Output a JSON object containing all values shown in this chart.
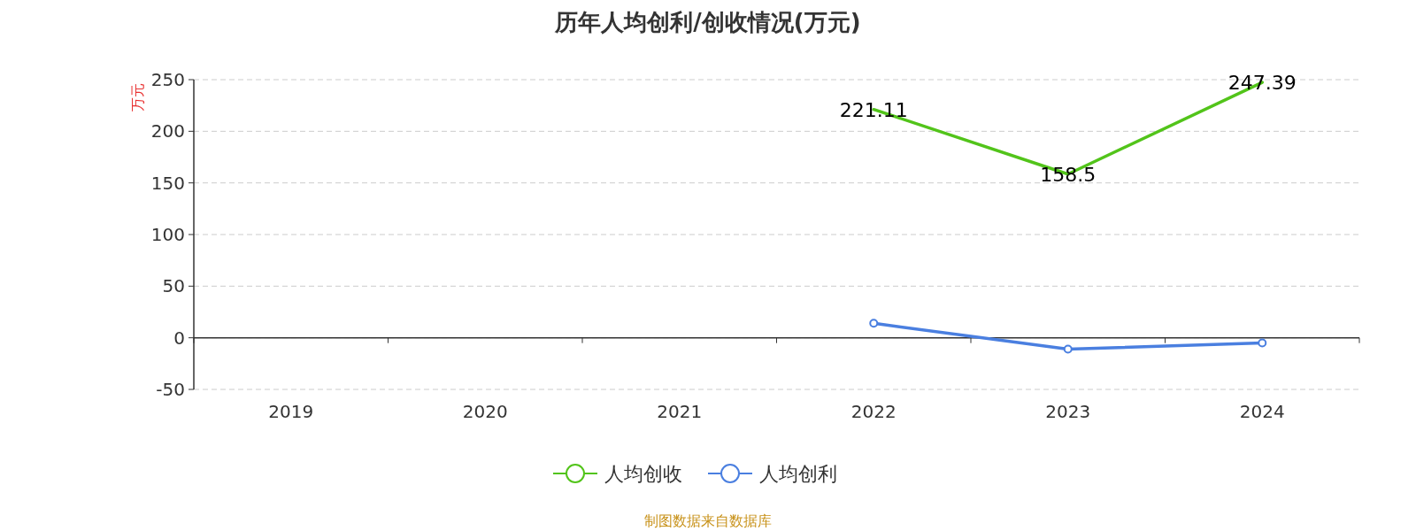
{
  "chart_data": {
    "type": "line",
    "title": "历年人均创利/创收情况(万元)",
    "ylabel": "万元",
    "categories": [
      "2019",
      "2020",
      "2021",
      "2022",
      "2023",
      "2024"
    ],
    "series": [
      {
        "name": "人均创收",
        "color": "#52c41a",
        "marker": "none",
        "values": [
          null,
          null,
          null,
          221.11,
          158.5,
          247.39
        ],
        "value_labels": [
          null,
          null,
          null,
          "221.11",
          "158.5",
          "247.39"
        ]
      },
      {
        "name": "人均创利",
        "color": "#4a7fe0",
        "marker": "circle",
        "values": [
          null,
          null,
          null,
          14,
          -11,
          -5
        ]
      }
    ],
    "ylim": [
      -50,
      250
    ],
    "yticks": [
      -50,
      0,
      50,
      100,
      150,
      200,
      250
    ],
    "grid": "y",
    "legend": "bottom",
    "annotations": [
      "制图数据来自数据库"
    ]
  }
}
